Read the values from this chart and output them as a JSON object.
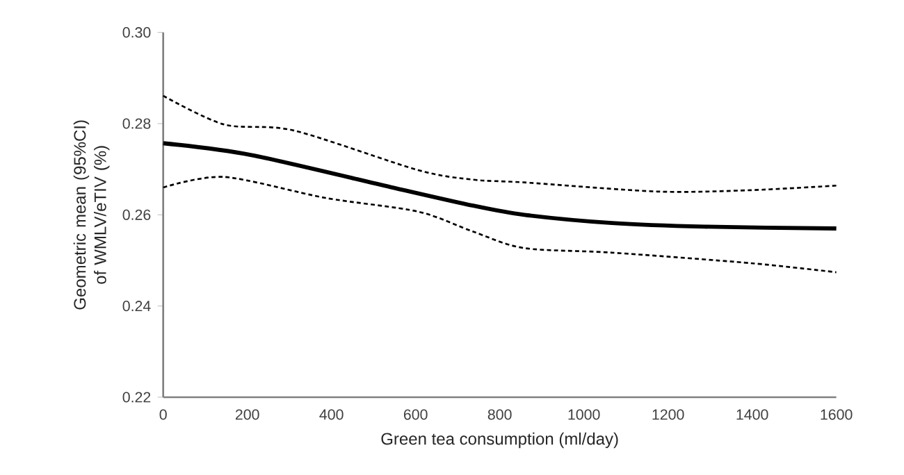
{
  "chart_data": {
    "type": "line",
    "xlabel": "Green tea consumption (ml/day)",
    "ylabel": "Geometric mean (95%CI) of WMLV/eTIV (%)",
    "xlim": [
      0,
      1600
    ],
    "xticks": [
      0,
      200,
      400,
      600,
      800,
      1000,
      1200,
      1400,
      1600
    ],
    "ylim": [
      0.22,
      0.3
    ],
    "yticks": [
      {
        "value": 0.22,
        "label": "0.22"
      },
      {
        "value": 0.24,
        "label": "0.24"
      },
      {
        "value": 0.26,
        "label": "0.26"
      },
      {
        "value": 0.28,
        "label": "0.28"
      },
      {
        "value": 0.3,
        "label": "0.30"
      }
    ],
    "grid": false,
    "series": [
      {
        "color": "#000000",
        "line_style": "solid",
        "x": [
          0,
          210,
          540,
          737,
          858,
          1067,
          1287,
          1600
        ],
        "values": [
          0.2757,
          0.2731,
          0.2661,
          0.262,
          0.26,
          0.2582,
          0.2574,
          0.257
        ]
      },
      {
        "color": "#000000",
        "line_style": "dashed",
        "x": [
          0,
          145,
          310,
          606,
          737,
          858,
          1176,
          1396,
          1600
        ],
        "values": [
          0.2861,
          0.2798,
          0.2785,
          0.2698,
          0.2677,
          0.2671,
          0.2651,
          0.2654,
          0.2664
        ]
      },
      {
        "color": "#000000",
        "line_style": "dashed",
        "x": [
          0,
          145,
          386,
          606,
          737,
          858,
          1067,
          1396,
          1600
        ],
        "values": [
          0.266,
          0.2683,
          0.2637,
          0.2607,
          0.2563,
          0.2527,
          0.2517,
          0.2494,
          0.2474
        ]
      }
    ]
  }
}
